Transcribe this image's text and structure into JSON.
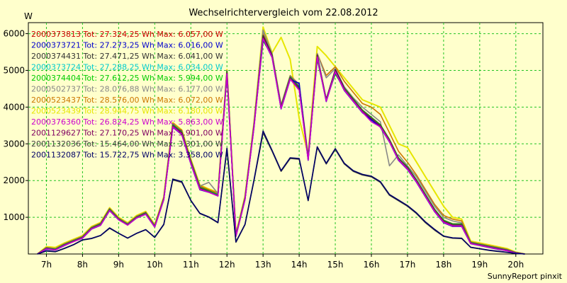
{
  "chart_data": {
    "type": "line",
    "title": "Wechselrichtervergleich vom 22.08.2012",
    "ylabel": "W",
    "footer": "SunnyReport pinxit",
    "ylim": [
      0,
      6300
    ],
    "xlim": [
      6.5,
      20.75
    ],
    "y_ticks": [
      1000,
      2000,
      3000,
      4000,
      5000,
      6000
    ],
    "x_ticks": [
      {
        "value": 7,
        "label": "7h"
      },
      {
        "value": 8,
        "label": "8h"
      },
      {
        "value": 9,
        "label": "9h"
      },
      {
        "value": 10,
        "label": "10h"
      },
      {
        "value": 11,
        "label": "11h"
      },
      {
        "value": 12,
        "label": "12h"
      },
      {
        "value": 13,
        "label": "13h"
      },
      {
        "value": 14,
        "label": "14h"
      },
      {
        "value": 15,
        "label": "15h"
      },
      {
        "value": 16,
        "label": "16h"
      },
      {
        "value": 17,
        "label": "17h"
      },
      {
        "value": 18,
        "label": "18h"
      },
      {
        "value": 19,
        "label": "19h"
      },
      {
        "value": 20,
        "label": "20h"
      }
    ],
    "grid": true,
    "legend_position": "top-left",
    "x": [
      6.75,
      7.0,
      7.25,
      7.5,
      7.75,
      8.0,
      8.25,
      8.5,
      8.75,
      9.0,
      9.25,
      9.5,
      9.75,
      10.0,
      10.25,
      10.5,
      10.75,
      11.0,
      11.25,
      11.5,
      11.75,
      12.0,
      12.25,
      12.5,
      12.75,
      13.0,
      13.25,
      13.5,
      13.75,
      14.0,
      14.25,
      14.5,
      14.75,
      15.0,
      15.25,
      15.5,
      15.75,
      16.0,
      16.25,
      16.5,
      16.75,
      17.0,
      17.25,
      17.5,
      17.75,
      18.0,
      18.25,
      18.5,
      18.75,
      19.0,
      19.25,
      19.5,
      19.75,
      20.0,
      20.25
    ],
    "series": [
      {
        "name": "2000373813 Tot: 27.324,25 Wh Max: 6.057,00 W",
        "color": "#cc0000",
        "values": [
          0,
          150,
          120,
          250,
          350,
          450,
          700,
          800,
          1200,
          950,
          800,
          1000,
          1100,
          750,
          1500,
          3500,
          3300,
          2500,
          1800,
          1700,
          1600,
          4950,
          500,
          1500,
          3500,
          5900,
          5400,
          4000,
          4800,
          4500,
          2600,
          5400,
          4200,
          5000,
          4500,
          4200,
          3900,
          3700,
          3500,
          3100,
          2600,
          2350,
          2000,
          1600,
          1200,
          900,
          800,
          800,
          300,
          250,
          200,
          150,
          100,
          30,
          0
        ]
      },
      {
        "name": "2000373721 Tot: 27.273,25 Wh Max: 6.016,00 W",
        "color": "#0000cc",
        "values": [
          0,
          130,
          110,
          230,
          340,
          430,
          680,
          780,
          1180,
          930,
          790,
          980,
          1080,
          730,
          1480,
          3450,
          3250,
          2450,
          1750,
          1680,
          1580,
          4900,
          480,
          1480,
          3450,
          5850,
          5350,
          3950,
          4750,
          4650,
          2550,
          5350,
          4150,
          4950,
          4450,
          4150,
          3850,
          3650,
          3450,
          3050,
          2550,
          2300,
          1950,
          1550,
          1150,
          850,
          750,
          750,
          280,
          230,
          180,
          130,
          90,
          25,
          0
        ]
      },
      {
        "name": "2000374431 Tot: 27.471,25 Wh Max: 6.041,00 W",
        "color": "#333333",
        "values": [
          0,
          160,
          130,
          260,
          360,
          460,
          710,
          820,
          1220,
          960,
          810,
          1010,
          1120,
          760,
          1520,
          3520,
          3320,
          2520,
          1820,
          1720,
          1620,
          4980,
          510,
          1520,
          3520,
          5950,
          5420,
          4020,
          4820,
          4550,
          2620,
          5420,
          4220,
          5020,
          4520,
          4220,
          3920,
          3720,
          3520,
          3120,
          2620,
          2370,
          2020,
          1620,
          1220,
          920,
          820,
          820,
          310,
          260,
          210,
          160,
          110,
          35,
          0
        ]
      },
      {
        "name": "2000373724 Tot: 27.288,25 Wh Max: 6.034,00 W",
        "color": "#00cccc",
        "values": [
          0,
          140,
          115,
          240,
          345,
          440,
          690,
          790,
          1190,
          940,
          795,
          990,
          1090,
          740,
          1490,
          3480,
          3280,
          2480,
          1780,
          1690,
          1590,
          4920,
          490,
          1490,
          3480,
          5880,
          5380,
          3980,
          4780,
          4480,
          2580,
          5380,
          4180,
          4980,
          4480,
          4180,
          3880,
          3680,
          3480,
          3080,
          2580,
          2330,
          1980,
          1580,
          1180,
          880,
          780,
          780,
          290,
          240,
          190,
          140,
          95,
          28,
          0
        ]
      },
      {
        "name": "2000374404 Tot: 27.612,25 Wh Max: 5.994,00 W",
        "color": "#00cc00",
        "values": [
          0,
          150,
          125,
          255,
          355,
          455,
          705,
          810,
          1210,
          955,
          805,
          1005,
          1105,
          755,
          1505,
          3510,
          3310,
          2510,
          1810,
          1710,
          1610,
          4960,
          505,
          1505,
          3510,
          5800,
          5410,
          4010,
          4810,
          4510,
          2610,
          5300,
          4210,
          4900,
          4510,
          4210,
          3910,
          3710,
          3510,
          3110,
          2610,
          2360,
          2010,
          1610,
          1210,
          910,
          810,
          810,
          305,
          255,
          205,
          155,
          105,
          32,
          0
        ]
      },
      {
        "name": "2000502737 Tot: 28.076,88 Wh Max: 6.177,00 W",
        "color": "#888888",
        "values": [
          0,
          170,
          140,
          270,
          370,
          470,
          720,
          830,
          1230,
          970,
          820,
          1020,
          1130,
          770,
          1530,
          3540,
          3340,
          2540,
          1850,
          1950,
          1650,
          5000,
          520,
          1550,
          3550,
          6100,
          5450,
          4050,
          4850,
          4600,
          2650,
          5450,
          4800,
          5050,
          4550,
          4250,
          4000,
          3800,
          3600,
          2400,
          2700,
          2400,
          2100,
          1700,
          1300,
          1000,
          900,
          850,
          320,
          270,
          220,
          170,
          120,
          40,
          0
        ]
      },
      {
        "name": "2000523437 Tot: 28.576,00 Wh Max: 6.072,00 W",
        "color": "#cc7700",
        "values": [
          0,
          180,
          150,
          280,
          380,
          480,
          730,
          840,
          1240,
          980,
          830,
          1030,
          1140,
          780,
          1540,
          3560,
          3360,
          2560,
          1860,
          1750,
          1660,
          5000,
          530,
          1560,
          3560,
          6000,
          5460,
          4060,
          4860,
          4620,
          2660,
          5460,
          4860,
          5100,
          4700,
          4400,
          4100,
          4000,
          3800,
          3300,
          2800,
          2500,
          2150,
          1750,
          1350,
          1050,
          950,
          900,
          330,
          280,
          230,
          180,
          130,
          45,
          0
        ]
      },
      {
        "name": "2000523439 Tot: 28.944,75 Wh Max: 6.180,00 W",
        "color": "#e6e600",
        "values": [
          0,
          200,
          180,
          300,
          400,
          500,
          750,
          860,
          1260,
          1000,
          850,
          1050,
          1160,
          800,
          1560,
          3580,
          3380,
          2580,
          1880,
          1770,
          1680,
          5020,
          550,
          1580,
          3580,
          6180,
          5480,
          5900,
          5300,
          3700,
          2700,
          5650,
          5400,
          5100,
          4800,
          4500,
          4200,
          4100,
          4000,
          3500,
          3000,
          2900,
          2500,
          2100,
          1700,
          1300,
          1000,
          950,
          350,
          300,
          250,
          200,
          150,
          50,
          0
        ]
      },
      {
        "name": "2000376360 Tot: 26.824,25 Wh Max: 5.863,00 W",
        "color": "#cc00cc",
        "values": [
          0,
          140,
          110,
          235,
          335,
          435,
          685,
          785,
          1185,
          935,
          785,
          985,
          1085,
          735,
          1485,
          3460,
          3260,
          2460,
          1760,
          1680,
          1580,
          4900,
          485,
          1485,
          3460,
          5860,
          5360,
          3960,
          4760,
          4460,
          2560,
          5360,
          4160,
          4960,
          4460,
          4160,
          3860,
          3600,
          3460,
          3060,
          2560,
          2310,
          1960,
          1560,
          1160,
          860,
          760,
          760,
          285,
          235,
          185,
          135,
          90,
          26,
          0
        ]
      },
      {
        "name": "2001129627 Tot: 27.170,25 Wh Max: 5.901,00 W",
        "color": "#800060",
        "values": [
          0,
          145,
          115,
          245,
          345,
          445,
          695,
          795,
          1195,
          945,
          795,
          995,
          1095,
          745,
          1495,
          3490,
          3290,
          2490,
          1790,
          1690,
          1590,
          4930,
          495,
          1495,
          3490,
          5900,
          5390,
          3990,
          4790,
          4490,
          2590,
          5390,
          4190,
          4990,
          4490,
          4190,
          3890,
          3690,
          3490,
          3090,
          2590,
          2340,
          1990,
          1590,
          1190,
          890,
          790,
          790,
          295,
          245,
          195,
          145,
          98,
          29,
          0
        ]
      },
      {
        "name": "2001132036 Tot: 15.464,00 Wh Max: 3.301,00 W",
        "color": "#404040",
        "values": [
          0,
          80,
          60,
          150,
          250,
          380,
          420,
          500,
          700,
          560,
          430,
          560,
          660,
          450,
          800,
          2020,
          1950,
          1450,
          1100,
          1000,
          850,
          2850,
          320,
          800,
          2000,
          3300,
          2800,
          2250,
          2600,
          2580,
          1450,
          2900,
          2450,
          2850,
          2450,
          2250,
          2150,
          2100,
          1950,
          1600,
          1450,
          1300,
          1100,
          850,
          650,
          480,
          430,
          420,
          180,
          140,
          100,
          70,
          45,
          15,
          0
        ]
      },
      {
        "name": "2001132087 Tot: 15.722,75 Wh Max: 3.358,00 W",
        "color": "#000066",
        "values": [
          0,
          85,
          65,
          155,
          255,
          385,
          425,
          505,
          710,
          565,
          435,
          565,
          665,
          455,
          810,
          2040,
          1970,
          1460,
          1110,
          1010,
          860,
          2880,
          330,
          810,
          2020,
          3350,
          2820,
          2270,
          2620,
          2600,
          1460,
          2920,
          2470,
          2870,
          2470,
          2270,
          2170,
          2120,
          1970,
          1620,
          1470,
          1320,
          1120,
          870,
          670,
          490,
          440,
          430,
          185,
          145,
          105,
          75,
          48,
          16,
          0
        ]
      }
    ]
  }
}
